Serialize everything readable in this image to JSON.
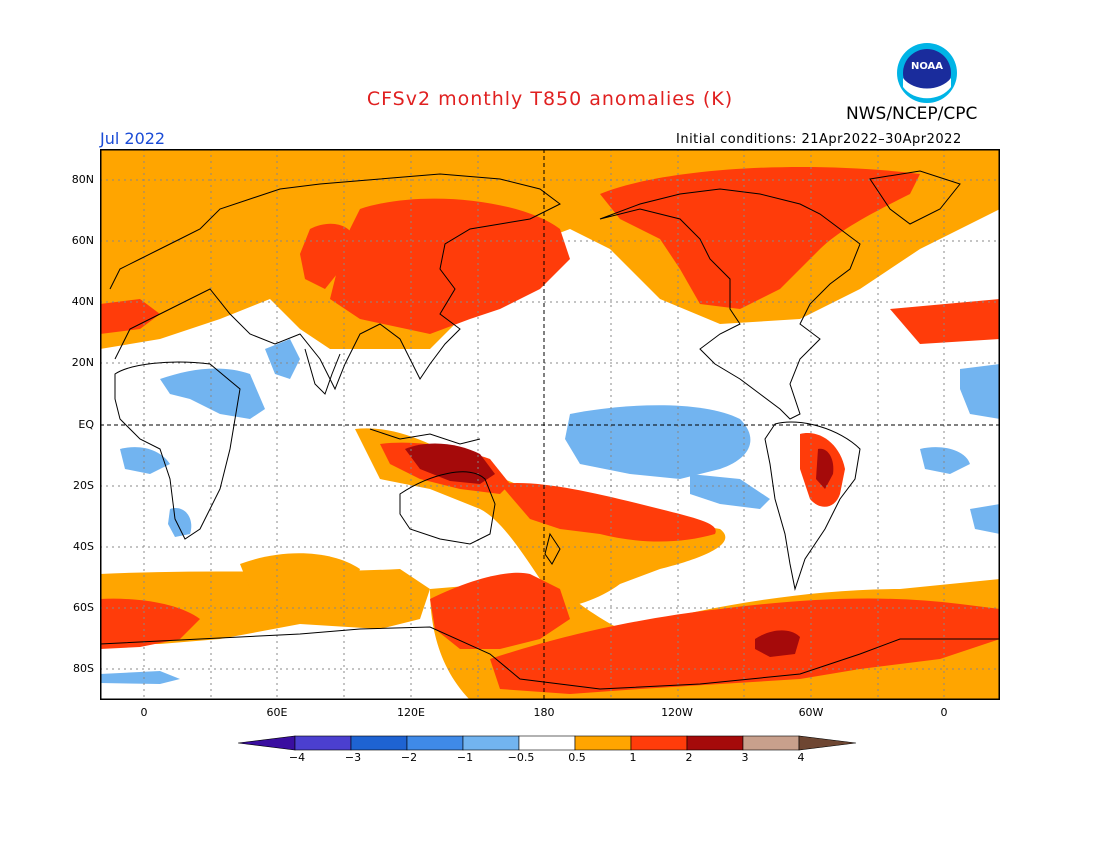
{
  "title": "CFSv2 monthly T850 anomalies (K)",
  "agency": "NWS/NCEP/CPC",
  "logo_text": "NOAA",
  "valid_month": "Jul 2022",
  "initial_conditions": "Initial conditions: 21Apr2022–30Apr2022",
  "lat_ticks": [
    "80N",
    "60N",
    "40N",
    "20N",
    "EQ",
    "20S",
    "40S",
    "60S",
    "80S"
  ],
  "lon_ticks": [
    "0",
    "60E",
    "120E",
    "180",
    "120W",
    "60W",
    "0"
  ],
  "colorbar": {
    "ticks": [
      "−4",
      "−3",
      "−2",
      "−1",
      "−0.5",
      "0.5",
      "1",
      "2",
      "3",
      "4"
    ],
    "colors": [
      "#3a0ea0",
      "#4b3fcf",
      "#1e63d2",
      "#3f8ae8",
      "#72b4f0",
      "#ffffff",
      "#ffa500",
      "#ff3c0a",
      "#a50a0a",
      "#c8a08c",
      "#6e4632"
    ]
  },
  "colors": {
    "title": "#e02020",
    "valid_month": "#1a4bd6",
    "warm_1": "#ffa500",
    "warm_2": "#ff3c0a",
    "warm_3": "#a50a0a",
    "cool_1": "#72b4f0"
  }
}
